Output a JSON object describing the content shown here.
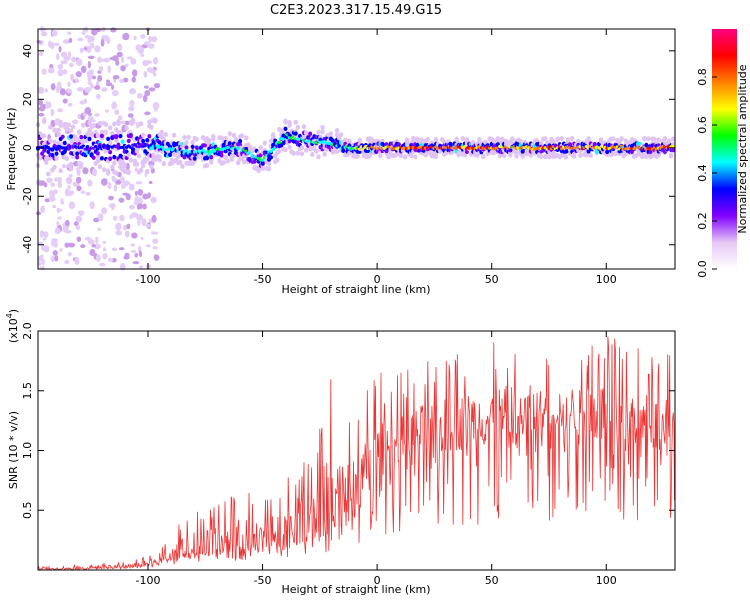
{
  "chart_data": [
    {
      "type": "heatmap",
      "title": "C2E3.2023.317.15.49.G15",
      "xlabel": "Height of straight line (km)",
      "ylabel": "Frequency (Hz)",
      "xlim": [
        -148,
        130
      ],
      "ylim": [
        -50,
        49
      ],
      "x_ticks": [
        -100,
        -50,
        0,
        50,
        100
      ],
      "y_ticks": [
        -40,
        -20,
        0,
        20,
        40
      ],
      "colorbar": {
        "label": "Normalized spectral amplitude",
        "range": [
          0,
          1
        ],
        "ticks": [
          "0.0",
          "0.2",
          "0.4",
          "0.6",
          "0.8"
        ],
        "colors": [
          "#ffffff",
          "#e6c8f5",
          "#8000ff",
          "#0000ff",
          "#00ffff",
          "#00ff00",
          "#ffff00",
          "#ff8000",
          "#ff0000",
          "#ff0080"
        ]
      },
      "grid": false,
      "ridge": {
        "description_points_x": [
          -148,
          -120,
          -100,
          -95,
          -80,
          -60,
          -50,
          -40,
          -30,
          -20,
          -15,
          0,
          20,
          40,
          60,
          80,
          100,
          130
        ],
        "center_frequency_hz": [
          0,
          0,
          1,
          0,
          -2,
          0,
          -5,
          5,
          3,
          2,
          0,
          0,
          0,
          0,
          0,
          0,
          0,
          0
        ],
        "peak_amplitude": [
          0.35,
          0.3,
          0.35,
          0.45,
          0.5,
          0.5,
          0.55,
          0.5,
          0.55,
          0.5,
          0.45,
          0.85,
          0.9,
          0.9,
          0.75,
          0.85,
          0.8,
          0.85
        ]
      }
    },
    {
      "type": "line",
      "title": "",
      "xlabel": "Height of straight line (km)",
      "ylabel": "SNR (10 * v/v)",
      "y_scale_label": "(x10",
      "y_scale_exp": "4",
      "xlim": [
        -148,
        130
      ],
      "ylim": [
        0,
        2.0
      ],
      "x_ticks": [
        -100,
        -50,
        0,
        50,
        100
      ],
      "y_ticks": [
        "0.5",
        "1.0",
        "1.5",
        "2.0"
      ],
      "color": "#ee3333",
      "grid": false,
      "series": [
        {
          "envelope_x": [
            -148,
            -120,
            -105,
            -95,
            -90,
            -80,
            -70,
            -60,
            -50,
            -40,
            -30,
            -20,
            -10,
            0,
            10,
            20,
            40,
            60,
            80,
            100,
            120,
            130
          ],
          "mean": [
            0.01,
            0.02,
            0.04,
            0.08,
            0.15,
            0.2,
            0.22,
            0.25,
            0.28,
            0.35,
            0.45,
            0.55,
            0.7,
            0.9,
            1.05,
            1.15,
            1.25,
            1.3,
            1.35,
            1.3,
            1.25,
            1.2
          ],
          "peak": [
            0.03,
            0.05,
            0.1,
            0.15,
            0.35,
            0.5,
            0.55,
            0.7,
            0.6,
            0.8,
            1.0,
            1.65,
            1.3,
            1.7,
            1.65,
            1.75,
            1.85,
            1.95,
            1.8,
            2.0,
            1.8,
            2.0
          ]
        }
      ]
    }
  ]
}
